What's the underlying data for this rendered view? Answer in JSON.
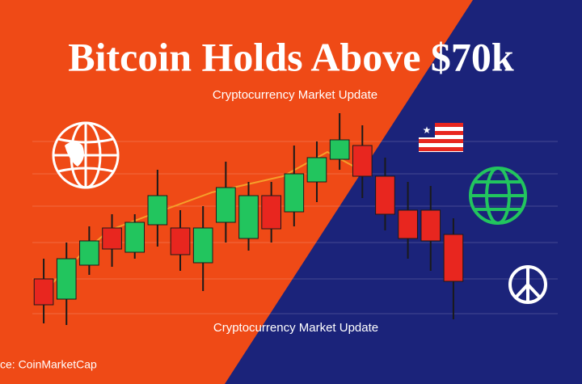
{
  "title": "Bitcoin Holds Above $70k",
  "source": "ce: CoinMarketCap",
  "chart_data": {
    "type": "candlestick",
    "subtitle": "Cryptocurrency Market Update",
    "caption": "Cryptocurrency Market Update",
    "categories": [
      null,
      null,
      null,
      null,
      null,
      null,
      null,
      null,
      null,
      null,
      null,
      null,
      null,
      null,
      null,
      null,
      null,
      null,
      null
    ],
    "open": [
      65,
      40,
      82,
      128,
      98,
      132,
      128,
      85,
      135,
      115,
      168,
      148,
      185,
      213,
      230,
      192,
      150,
      150,
      120
    ],
    "close": [
      33,
      90,
      112,
      102,
      135,
      168,
      95,
      128,
      178,
      168,
      127,
      195,
      215,
      237,
      192,
      145,
      115,
      112,
      62
    ],
    "high": [
      90,
      110,
      130,
      145,
      145,
      200,
      150,
      155,
      210,
      185,
      185,
      230,
      235,
      270,
      255,
      215,
      185,
      180,
      140
    ],
    "low": [
      10,
      8,
      70,
      80,
      90,
      105,
      75,
      50,
      110,
      100,
      110,
      130,
      160,
      200,
      165,
      125,
      90,
      75,
      15
    ],
    "up_color": "#22c55e",
    "down_color": "#e8261f",
    "ylim": [
      0,
      280
    ]
  }
}
